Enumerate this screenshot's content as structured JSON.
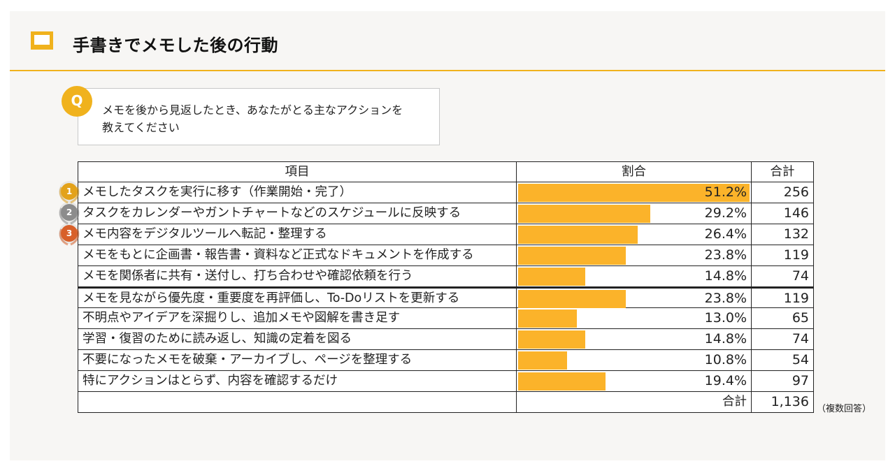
{
  "header": {
    "title": "手書きでメモした後の行動"
  },
  "question": {
    "badge": "Q",
    "text": "メモを後から見返したとき、あなたがとる主なアクションを\n教えてください"
  },
  "colors": {
    "accent": "#f0b21d",
    "bar": "#fbb32a",
    "gold": "#e3a21a",
    "silver": "#8c8c8c",
    "bronze": "#d8602a"
  },
  "medals": [
    {
      "rank": "1",
      "color": "gold"
    },
    {
      "rank": "2",
      "color": "silver"
    },
    {
      "rank": "3",
      "color": "bronze"
    }
  ],
  "chart_data": {
    "type": "bar",
    "title": "手書きでメモした後の行動",
    "columns": {
      "item": "項目",
      "ratio": "割合",
      "total": "合計"
    },
    "max_value": 51.2,
    "rows": [
      {
        "label": "メモしたタスクを実行に移す（作業開始・完了）",
        "pct": 51.2,
        "pct_label": "51.2%",
        "count": "256"
      },
      {
        "label": "タスクをカレンダーやガントチャートなどのスケジュールに反映する",
        "pct": 29.2,
        "pct_label": "29.2%",
        "count": "146"
      },
      {
        "label": "メモ内容をデジタルツールへ転記・整理する",
        "pct": 26.4,
        "pct_label": "26.4%",
        "count": "132"
      },
      {
        "label": "メモをもとに企画書・報告書・資料など正式なドキュメントを作成する",
        "pct": 23.8,
        "pct_label": "23.8%",
        "count": "119"
      },
      {
        "label": "メモを関係者に共有・送付し、打ち合わせや確認依頼を行う",
        "pct": 14.8,
        "pct_label": "14.8%",
        "count": "74"
      },
      {
        "label": "メモを見ながら優先度・重要度を再評価し、To-Doリストを更新する",
        "pct": 23.8,
        "pct_label": "23.8%",
        "count": "119"
      },
      {
        "label": "不明点やアイデアを深掘りし、追加メモや図解を書き足す",
        "pct": 13.0,
        "pct_label": "13.0%",
        "count": "65"
      },
      {
        "label": "学習・復習のために読み返し、知識の定着を図る",
        "pct": 14.8,
        "pct_label": "14.8%",
        "count": "74"
      },
      {
        "label": "不要になったメモを破棄・アーカイブし、ページを整理する",
        "pct": 10.8,
        "pct_label": "10.8%",
        "count": "54"
      },
      {
        "label": "特にアクションはとらず、内容を確認するだけ",
        "pct": 19.4,
        "pct_label": "19.4%",
        "count": "97"
      }
    ],
    "sum_label": "合計",
    "sum_value": "1,136",
    "note": "（複数回答）"
  }
}
